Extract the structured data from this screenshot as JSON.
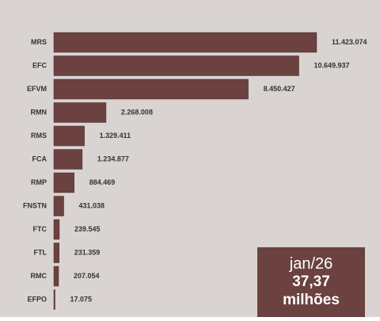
{
  "colors": {
    "background": "#d9d4d2",
    "bar": "#6b4240",
    "bar_edge": "#4a2e2c",
    "text": "#333333",
    "callout_bg": "#6b4240",
    "callout_text": "#ffffff"
  },
  "chart_data": {
    "type": "bar",
    "orientation": "horizontal",
    "categories": [
      "MRS",
      "EFC",
      "EFVM",
      "RMN",
      "RMS",
      "FCA",
      "RMP",
      "FNSTN",
      "FTC",
      "FTL",
      "RMC",
      "EFPO"
    ],
    "values": [
      11423074,
      10649937,
      8450427,
      2268008,
      1329411,
      1234877,
      884469,
      431038,
      239545,
      231359,
      207054,
      17075
    ],
    "value_labels": [
      "11.423.074",
      "10.649.937",
      "8.450.427",
      "2.268.008",
      "1.329.411",
      "1.234.877",
      "884.469",
      "431.038",
      "239.545",
      "231.359",
      "207.054",
      "17.075"
    ],
    "title": "",
    "xlabel": "",
    "ylabel": "",
    "grid": false,
    "legend": "none"
  },
  "callout": {
    "period": "jan/26",
    "total": "37,37",
    "unit": "milhões"
  }
}
